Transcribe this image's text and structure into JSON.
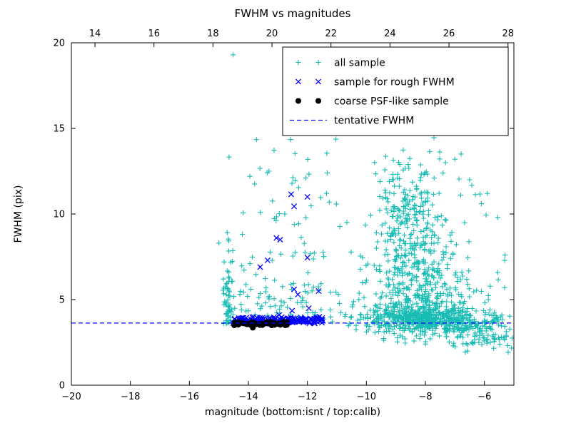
{
  "title": "FWHM vs magnitudes",
  "chart_data": {
    "type": "scatter",
    "title": "FWHM vs magnitudes",
    "xlabel": "magnitude (bottom:isnt / top:calib)",
    "ylabel": "FWHM (pix)",
    "xlim": [
      -20,
      -5
    ],
    "ylim": [
      0,
      20
    ],
    "x_ticks_bottom": {
      "values": [
        -20,
        -18,
        -16,
        -14,
        -12,
        -10,
        -8,
        -6
      ],
      "labels": [
        "−20",
        "−18",
        "−16",
        "−14",
        "−12",
        "−10",
        "−8",
        "−6"
      ]
    },
    "x_ticks_top": {
      "values": [
        14,
        16,
        18,
        20,
        22,
        24,
        26,
        28
      ],
      "labels": [
        "14",
        "16",
        "18",
        "20",
        "22",
        "24",
        "26",
        "28"
      ]
    },
    "top_axis_offset": 33.2,
    "y_ticks": {
      "values": [
        0,
        5,
        10,
        15,
        20
      ],
      "labels": [
        "0",
        "5",
        "10",
        "15",
        "20"
      ]
    },
    "tentative_fwhm": 3.63,
    "colors": {
      "all_sample": "#17bcb4",
      "rough_fwhm": "#0000ff",
      "coarse_psf": "#000000",
      "tentative_line": "#0000ff",
      "axis": "#000000"
    },
    "legend": [
      {
        "label": "all sample",
        "marker": "plus",
        "color": "#17bcb4"
      },
      {
        "label": "sample for rough FWHM",
        "marker": "x",
        "color": "#0000ff"
      },
      {
        "label": "coarse PSF-like sample",
        "marker": "dot",
        "color": "#000000"
      },
      {
        "label": "tentative FWHM",
        "marker": "dashed-line",
        "color": "#0000ff"
      }
    ],
    "series": [
      {
        "name": "all sample",
        "marker": "plus",
        "color": "#17bcb4",
        "seed": 12345,
        "clusters": [
          {
            "n": 520,
            "x": {
              "type": "normal",
              "mu": -7.9,
              "sigma": 1.15,
              "min": -10.8,
              "max": -5.05
            },
            "y": {
              "type": "normal",
              "mu": 3.75,
              "sigma": 0.4,
              "min": 2.4,
              "max": 5.2
            }
          },
          {
            "n": 430,
            "x": {
              "type": "normal",
              "mu": -8.3,
              "sigma": 1.05,
              "min": -10.8,
              "max": -5.05
            },
            "y": {
              "type": "exp",
              "base": 3.9,
              "scale": 2.3,
              "max": 15.6
            }
          },
          {
            "n": 230,
            "x": {
              "type": "normal",
              "mu": -8.6,
              "sigma": 0.6,
              "min": -10.3,
              "max": -7.0
            },
            "y": {
              "type": "normal",
              "mu": 9.2,
              "sigma": 2.3,
              "min": 4.8,
              "max": 15.6
            }
          },
          {
            "n": 55,
            "x": {
              "type": "normal",
              "mu": -14.68,
              "sigma": 0.07,
              "min": -14.95,
              "max": -14.4
            },
            "y": {
              "type": "exp",
              "base": 3.6,
              "scale": 1.9,
              "max": 9.6
            }
          },
          {
            "n": 125,
            "x": {
              "type": "uniform",
              "min": -14.9,
              "max": -10.85
            },
            "y": {
              "type": "exp",
              "base": 3.7,
              "scale": 2.5,
              "max": 14.5
            }
          },
          {
            "n": 22,
            "x": {
              "type": "uniform",
              "min": -14.1,
              "max": -11.0
            },
            "y": {
              "type": "uniform",
              "min": 9.0,
              "max": 14.6
            }
          },
          {
            "n": 45,
            "x": {
              "type": "uniform",
              "min": -7.2,
              "max": -5.05
            },
            "y": {
              "type": "uniform",
              "min": 1.9,
              "max": 3.4
            }
          },
          {
            "n": 40,
            "x": {
              "type": "uniform",
              "min": -9.8,
              "max": -5.1
            },
            "y": {
              "type": "uniform",
              "min": 2.3,
              "max": 3.3
            }
          }
        ],
        "points": [
          [
            -14.52,
            19.3
          ],
          [
            -13.95,
            12.2
          ],
          [
            -13.3,
            12.5
          ],
          [
            -12.05,
            12.1
          ],
          [
            -9.55,
            15.2
          ],
          [
            -8.2,
            15.7
          ],
          [
            -7.45,
            14.9
          ],
          [
            -5.55,
            9.8
          ],
          [
            -5.3,
            7.6
          ],
          [
            -15.0,
            8.3
          ],
          [
            -14.82,
            7.2
          ],
          [
            -6.1,
            10.6
          ],
          [
            -5.9,
            11.2
          ],
          [
            -6.5,
            12.0
          ],
          [
            -7.0,
            13.2
          ]
        ]
      },
      {
        "name": "sample for rough FWHM",
        "marker": "x",
        "color": "#0000ff",
        "seed": 777,
        "clusters": [
          {
            "n": 140,
            "x": {
              "type": "uniform",
              "min": -14.55,
              "max": -11.45
            },
            "y": {
              "type": "normal",
              "mu": 3.8,
              "sigma": 0.1,
              "min": 3.55,
              "max": 4.15
            }
          }
        ],
        "points": [
          [
            -12.55,
            11.15
          ],
          [
            -12.0,
            11.0
          ],
          [
            -12.45,
            10.45
          ],
          [
            -13.05,
            8.6
          ],
          [
            -12.92,
            8.5
          ],
          [
            -13.35,
            7.3
          ],
          [
            -12.0,
            7.45
          ],
          [
            -13.6,
            6.9
          ],
          [
            -12.45,
            5.6
          ],
          [
            -12.32,
            5.3
          ],
          [
            -11.62,
            5.5
          ],
          [
            -12.52,
            4.35
          ],
          [
            -11.95,
            4.5
          ]
        ]
      },
      {
        "name": "coarse PSF-like sample",
        "marker": "dot",
        "color": "#000000",
        "seed": 99,
        "clusters": [
          {
            "n": 52,
            "x": {
              "type": "uniform",
              "min": -14.5,
              "max": -12.68
            },
            "y": {
              "type": "normal",
              "mu": 3.6,
              "sigma": 0.06,
              "min": 3.46,
              "max": 3.76
            }
          }
        ],
        "points": [
          [
            -13.85,
            3.36
          ]
        ]
      }
    ]
  }
}
